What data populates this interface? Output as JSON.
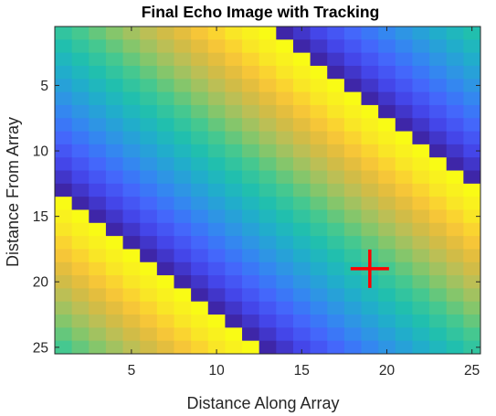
{
  "chart_data": {
    "type": "heatmap",
    "title": "Final Echo Image with Tracking",
    "xlabel": "Distance Along Array",
    "ylabel": "Distance From Array",
    "xlim": [
      0.5,
      25.5
    ],
    "ylim": [
      0.5,
      25.5
    ],
    "y_reversed": true,
    "x_ticks": [
      5,
      10,
      15,
      20,
      25
    ],
    "y_ticks": [
      5,
      10,
      15,
      20,
      25
    ],
    "x_tick_labels": [
      "5",
      "10",
      "15",
      "20",
      "25"
    ],
    "y_tick_labels": [
      "5",
      "10",
      "15",
      "20",
      "25"
    ],
    "rows": 25,
    "cols": 25,
    "colormap": "parula",
    "value_model": {
      "description": "cell value v = ((col - row + 12) mod 25) / 24, mapped to parula colormap",
      "offset": 12,
      "period": 25
    },
    "marker": {
      "type": "plus",
      "x": 19,
      "y": 19,
      "color": "#ff0000"
    },
    "grid": false,
    "legend": "none"
  },
  "colors": {
    "parula": [
      "#3e26a8",
      "#4443e7",
      "#4662fc",
      "#3780f5",
      "#2b9ae0",
      "#1fb0c8",
      "#21c0ad",
      "#43c891",
      "#7ec76d",
      "#b4c05a",
      "#dbba41",
      "#fbc836",
      "#f9e925",
      "#f9fb15"
    ],
    "marker": "#ff0000",
    "axis": "#262626"
  }
}
